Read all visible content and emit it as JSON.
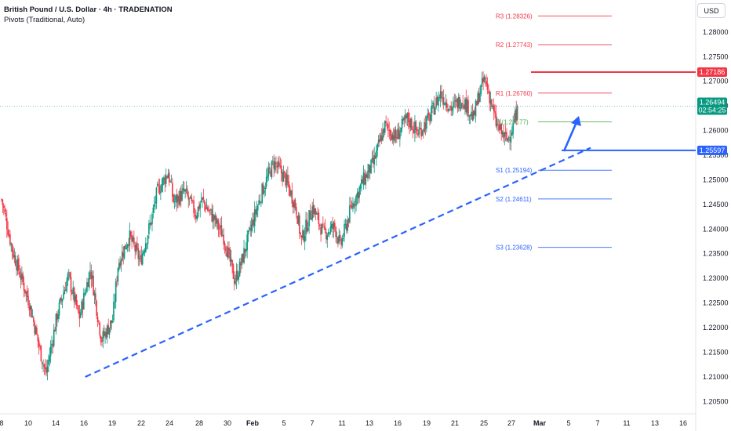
{
  "legend": {
    "title": "British Pound / U.S. Dollar · 4h · TRADENATION",
    "indicator": "Pivots (Traditional, Auto)"
  },
  "currency": "USD",
  "colors": {
    "up": "#089981",
    "down": "#f23645",
    "resistance": "#f23645",
    "support": "#2962ff",
    "pivot": "#4caf50",
    "current": "#089981"
  },
  "chart_data": {
    "type": "candlestick",
    "ylim": [
      1.2025,
      1.2865
    ],
    "y_ticks": [
      {
        "value": 1.28,
        "label": "1.28000"
      },
      {
        "value": 1.275,
        "label": "1.27500"
      },
      {
        "value": 1.27,
        "label": "1.27000"
      },
      {
        "value": 1.265,
        "label": "1.26500"
      },
      {
        "value": 1.26,
        "label": "1.26000"
      },
      {
        "value": 1.255,
        "label": "1.25500"
      },
      {
        "value": 1.25,
        "label": "1.25000"
      },
      {
        "value": 1.245,
        "label": "1.24500"
      },
      {
        "value": 1.24,
        "label": "1.24000"
      },
      {
        "value": 1.235,
        "label": "1.23500"
      },
      {
        "value": 1.23,
        "label": "1.23000"
      },
      {
        "value": 1.225,
        "label": "1.22500"
      },
      {
        "value": 1.22,
        "label": "1.22000"
      },
      {
        "value": 1.215,
        "label": "1.21500"
      },
      {
        "value": 1.21,
        "label": "1.21000"
      },
      {
        "value": 1.205,
        "label": "1.20500"
      }
    ],
    "x_ticks": [
      {
        "label": "8",
        "bold": false
      },
      {
        "label": "10",
        "bold": false
      },
      {
        "label": "14",
        "bold": false
      },
      {
        "label": "16",
        "bold": false
      },
      {
        "label": "19",
        "bold": false
      },
      {
        "label": "22",
        "bold": false
      },
      {
        "label": "24",
        "bold": false
      },
      {
        "label": "28",
        "bold": false
      },
      {
        "label": "30",
        "bold": false
      },
      {
        "label": "Feb",
        "bold": true
      },
      {
        "label": "5",
        "bold": false
      },
      {
        "label": "7",
        "bold": false
      },
      {
        "label": "11",
        "bold": false
      },
      {
        "label": "13",
        "bold": false
      },
      {
        "label": "16",
        "bold": false
      },
      {
        "label": "19",
        "bold": false
      },
      {
        "label": "21",
        "bold": false
      },
      {
        "label": "25",
        "bold": false
      },
      {
        "label": "27",
        "bold": false
      },
      {
        "label": "Mar",
        "bold": true
      },
      {
        "label": "5",
        "bold": false
      },
      {
        "label": "7",
        "bold": false
      },
      {
        "label": "11",
        "bold": false
      },
      {
        "label": "13",
        "bold": false
      },
      {
        "label": "16",
        "bold": false
      }
    ],
    "close_path": [
      {
        "day": 0,
        "value": 1.246
      },
      {
        "day": 2,
        "value": 1.2355
      },
      {
        "day": 5,
        "value": 1.225
      },
      {
        "day": 7,
        "value": 1.215
      },
      {
        "day": 8,
        "value": 1.2105
      },
      {
        "day": 10,
        "value": 1.2225
      },
      {
        "day": 12,
        "value": 1.2305
      },
      {
        "day": 14,
        "value": 1.222
      },
      {
        "day": 16,
        "value": 1.232
      },
      {
        "day": 18,
        "value": 1.2175
      },
      {
        "day": 20,
        "value": 1.2215
      },
      {
        "day": 21,
        "value": 1.233
      },
      {
        "day": 23,
        "value": 1.2385
      },
      {
        "day": 25,
        "value": 1.2335
      },
      {
        "day": 27,
        "value": 1.242
      },
      {
        "day": 28,
        "value": 1.2475
      },
      {
        "day": 30,
        "value": 1.2515
      },
      {
        "day": 31,
        "value": 1.2455
      },
      {
        "day": 33,
        "value": 1.2475
      },
      {
        "day": 35,
        "value": 1.243
      },
      {
        "day": 36,
        "value": 1.246
      },
      {
        "day": 38,
        "value": 1.2425
      },
      {
        "day": 40,
        "value": 1.2385
      },
      {
        "day": 42,
        "value": 1.2295
      },
      {
        "day": 43,
        "value": 1.2325
      },
      {
        "day": 45,
        "value": 1.2405
      },
      {
        "day": 47,
        "value": 1.248
      },
      {
        "day": 49,
        "value": 1.2535
      },
      {
        "day": 51,
        "value": 1.2505
      },
      {
        "day": 53,
        "value": 1.2445
      },
      {
        "day": 54,
        "value": 1.2375
      },
      {
        "day": 56,
        "value": 1.2445
      },
      {
        "day": 58,
        "value": 1.239
      },
      {
        "day": 60,
        "value": 1.2405
      },
      {
        "day": 61,
        "value": 1.2365
      },
      {
        "day": 63,
        "value": 1.2445
      },
      {
        "day": 65,
        "value": 1.2495
      },
      {
        "day": 67,
        "value": 1.2535
      },
      {
        "day": 69,
        "value": 1.261
      },
      {
        "day": 71,
        "value": 1.2585
      },
      {
        "day": 73,
        "value": 1.2625
      },
      {
        "day": 75,
        "value": 1.2595
      },
      {
        "day": 77,
        "value": 1.2625
      },
      {
        "day": 79,
        "value": 1.2675
      },
      {
        "day": 81,
        "value": 1.2645
      },
      {
        "day": 83,
        "value": 1.2665
      },
      {
        "day": 85,
        "value": 1.2625
      },
      {
        "day": 86,
        "value": 1.2675
      },
      {
        "day": 87,
        "value": 1.2705
      },
      {
        "day": 88,
        "value": 1.2665
      },
      {
        "day": 89,
        "value": 1.2615
      },
      {
        "day": 90,
        "value": 1.2595
      },
      {
        "day": 91,
        "value": 1.258
      },
      {
        "day": 92,
        "value": 1.2605
      },
      {
        "day": 93,
        "value": 1.26494
      }
    ],
    "pivots": [
      {
        "name": "R3",
        "label": "R3 (1.28326)",
        "value": 1.28326,
        "kind": "resistance"
      },
      {
        "name": "R2",
        "label": "R2 (1.27743)",
        "value": 1.27743,
        "kind": "resistance"
      },
      {
        "name": "R1",
        "label": "R1 (1.26760)",
        "value": 1.2676,
        "kind": "resistance"
      },
      {
        "name": "P",
        "label": "P (1.26177)",
        "value": 1.26177,
        "kind": "pivot"
      },
      {
        "name": "S1",
        "label": "S1 (1.25194)",
        "value": 1.25194,
        "kind": "support"
      },
      {
        "name": "S2",
        "label": "S2 (1.24611)",
        "value": 1.24611,
        "kind": "support"
      },
      {
        "name": "S3",
        "label": "S3 (1.23628)",
        "value": 1.23628,
        "kind": "support"
      }
    ],
    "resistance_level": {
      "value": 1.27186,
      "label": "1.27186"
    },
    "support_level": {
      "value": 1.25597,
      "label": "1.25597"
    },
    "current_price": {
      "value": 1.26494,
      "label": "1.26494",
      "countdown": "02:54:25"
    },
    "trendline": {
      "start": {
        "day": 8,
        "value": 1.2103
      },
      "end": {
        "day": 101,
        "value": 1.2565
      }
    }
  }
}
